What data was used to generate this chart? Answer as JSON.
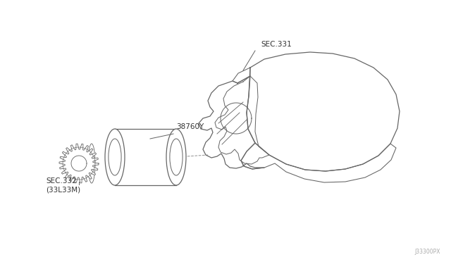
{
  "bg_color": "#ffffff",
  "line_color": "#666666",
  "label_color": "#333333",
  "fig_width": 6.4,
  "fig_height": 3.72,
  "dpi": 100,
  "watermark": "J33300PX",
  "labels": {
    "sec331": "SEC.331",
    "part38760y": "38760Y",
    "sec332": "SEC.332\n(33L33M)"
  }
}
